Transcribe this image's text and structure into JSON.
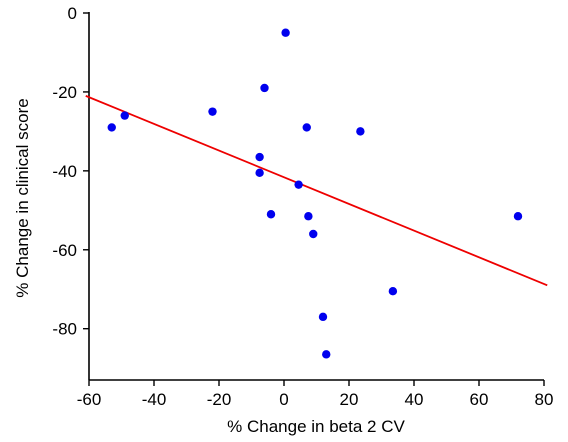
{
  "chart_data": {
    "type": "scatter",
    "title": "",
    "xlabel": "% Change in beta 2 CV",
    "ylabel": "% Change in clinical score",
    "xlim": [
      -60,
      80
    ],
    "ylim": [
      -93,
      0
    ],
    "xticks": [
      -60,
      -40,
      -20,
      0,
      20,
      40,
      60,
      80
    ],
    "yticks": [
      0,
      -20,
      -40,
      -60,
      -80
    ],
    "grid": false,
    "legend": "none",
    "point_color": "#0000ee",
    "line_color": "#ee0000",
    "points": [
      {
        "x": 0.5,
        "y": -5
      },
      {
        "x": -6,
        "y": -19
      },
      {
        "x": -22,
        "y": -25
      },
      {
        "x": -49,
        "y": -26
      },
      {
        "x": -53,
        "y": -29
      },
      {
        "x": 7,
        "y": -29
      },
      {
        "x": 23.5,
        "y": -30
      },
      {
        "x": -7.5,
        "y": -36.5
      },
      {
        "x": -7.5,
        "y": -40.5
      },
      {
        "x": 4.5,
        "y": -43.5
      },
      {
        "x": -4,
        "y": -51
      },
      {
        "x": 7.5,
        "y": -51.5
      },
      {
        "x": 72,
        "y": -51.5
      },
      {
        "x": 9,
        "y": -56
      },
      {
        "x": 33.5,
        "y": -70.5
      },
      {
        "x": 12,
        "y": -77
      },
      {
        "x": 13,
        "y": -86.5
      }
    ],
    "trendline": {
      "x": [
        -61,
        81
      ],
      "y": [
        -21,
        -69
      ]
    }
  }
}
